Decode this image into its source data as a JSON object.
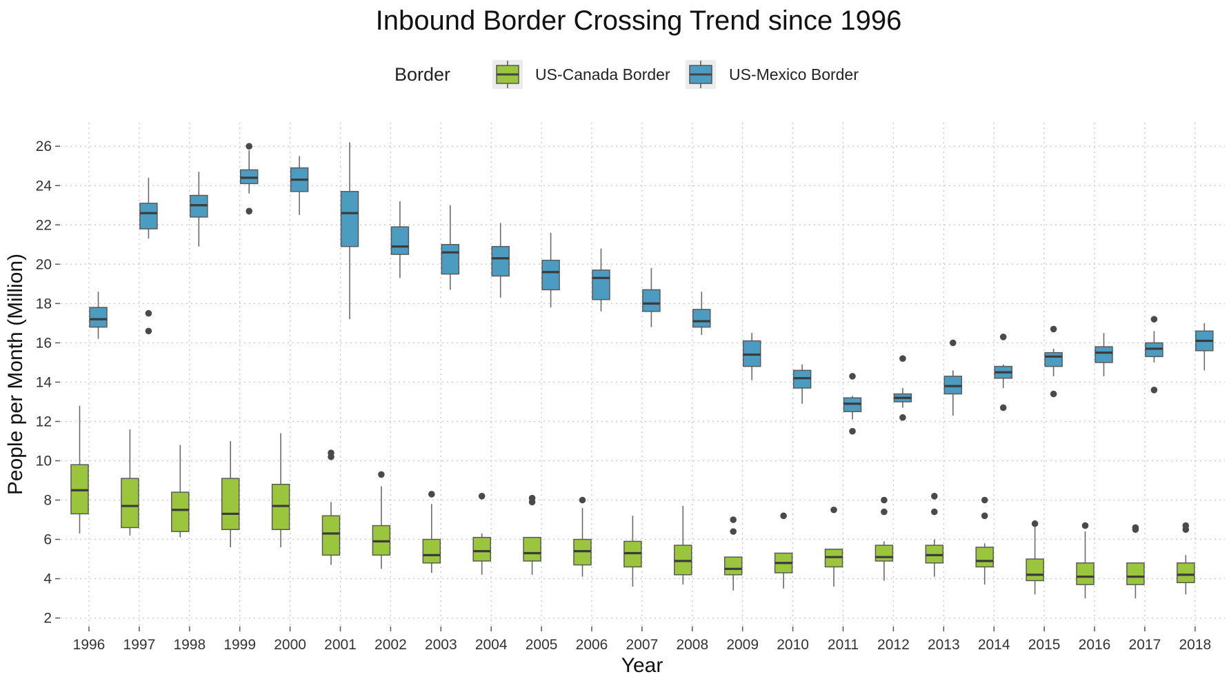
{
  "chart_data": {
    "type": "boxplot",
    "title": "Inbound Border Crossing Trend since 1996",
    "xlabel": "Year",
    "ylabel": "People per Month (Million)",
    "legend": {
      "title": "Border",
      "position": "top"
    },
    "ylim": [
      1.6,
      27.2
    ],
    "yticks": [
      2,
      4,
      6,
      8,
      10,
      12,
      14,
      16,
      18,
      20,
      22,
      24,
      26
    ],
    "categories": [
      "1996",
      "1997",
      "1998",
      "1999",
      "2000",
      "2001",
      "2002",
      "2003",
      "2004",
      "2005",
      "2006",
      "2007",
      "2008",
      "2009",
      "2010",
      "2011",
      "2012",
      "2013",
      "2014",
      "2015",
      "2016",
      "2017",
      "2018"
    ],
    "grid": true,
    "series": [
      {
        "name": "US-Canada Border",
        "color": "#9bc53d",
        "boxes": [
          {
            "whisker_low": 6.3,
            "q1": 7.3,
            "median": 8.5,
            "q3": 9.8,
            "whisker_high": 12.8,
            "outliers": []
          },
          {
            "whisker_low": 6.2,
            "q1": 6.6,
            "median": 7.7,
            "q3": 9.1,
            "whisker_high": 11.6,
            "outliers": []
          },
          {
            "whisker_low": 6.1,
            "q1": 6.4,
            "median": 7.5,
            "q3": 8.4,
            "whisker_high": 10.8,
            "outliers": []
          },
          {
            "whisker_low": 5.6,
            "q1": 6.5,
            "median": 7.3,
            "q3": 9.1,
            "whisker_high": 11.0,
            "outliers": []
          },
          {
            "whisker_low": 5.6,
            "q1": 6.5,
            "median": 7.7,
            "q3": 8.8,
            "whisker_high": 11.4,
            "outliers": []
          },
          {
            "whisker_low": 4.7,
            "q1": 5.2,
            "median": 6.3,
            "q3": 7.2,
            "whisker_high": 7.9,
            "outliers": [
              10.2,
              10.4
            ]
          },
          {
            "whisker_low": 4.5,
            "q1": 5.2,
            "median": 5.9,
            "q3": 6.7,
            "whisker_high": 8.7,
            "outliers": [
              9.3
            ]
          },
          {
            "whisker_low": 4.3,
            "q1": 4.8,
            "median": 5.2,
            "q3": 6.0,
            "whisker_high": 7.8,
            "outliers": [
              8.3
            ]
          },
          {
            "whisker_low": 4.2,
            "q1": 4.9,
            "median": 5.4,
            "q3": 6.1,
            "whisker_high": 6.3,
            "outliers": [
              8.2
            ]
          },
          {
            "whisker_low": 4.2,
            "q1": 4.9,
            "median": 5.3,
            "q3": 6.1,
            "whisker_high": 6.1,
            "outliers": [
              7.9,
              8.1
            ]
          },
          {
            "whisker_low": 4.1,
            "q1": 4.7,
            "median": 5.4,
            "q3": 6.0,
            "whisker_high": 7.6,
            "outliers": [
              8.0
            ]
          },
          {
            "whisker_low": 3.6,
            "q1": 4.6,
            "median": 5.3,
            "q3": 5.9,
            "whisker_high": 7.2,
            "outliers": []
          },
          {
            "whisker_low": 3.7,
            "q1": 4.2,
            "median": 4.9,
            "q3": 5.7,
            "whisker_high": 7.7,
            "outliers": []
          },
          {
            "whisker_low": 3.4,
            "q1": 4.2,
            "median": 4.5,
            "q3": 5.1,
            "whisker_high": 5.1,
            "outliers": [
              6.4,
              7.0
            ]
          },
          {
            "whisker_low": 3.5,
            "q1": 4.3,
            "median": 4.8,
            "q3": 5.3,
            "whisker_high": 5.3,
            "outliers": [
              7.2
            ]
          },
          {
            "whisker_low": 3.6,
            "q1": 4.6,
            "median": 5.1,
            "q3": 5.5,
            "whisker_high": 5.5,
            "outliers": [
              7.5
            ]
          },
          {
            "whisker_low": 3.9,
            "q1": 4.9,
            "median": 5.1,
            "q3": 5.7,
            "whisker_high": 5.9,
            "outliers": [
              7.4,
              8.0
            ]
          },
          {
            "whisker_low": 4.1,
            "q1": 4.8,
            "median": 5.2,
            "q3": 5.7,
            "whisker_high": 6.0,
            "outliers": [
              7.4,
              8.2
            ]
          },
          {
            "whisker_low": 3.7,
            "q1": 4.6,
            "median": 4.9,
            "q3": 5.6,
            "whisker_high": 5.8,
            "outliers": [
              7.2,
              8.0
            ]
          },
          {
            "whisker_low": 3.2,
            "q1": 3.9,
            "median": 4.2,
            "q3": 5.0,
            "whisker_high": 6.7,
            "outliers": [
              6.8
            ]
          },
          {
            "whisker_low": 3.0,
            "q1": 3.7,
            "median": 4.1,
            "q3": 4.8,
            "whisker_high": 6.4,
            "outliers": [
              6.7
            ]
          },
          {
            "whisker_low": 3.0,
            "q1": 3.7,
            "median": 4.1,
            "q3": 4.8,
            "whisker_high": 4.8,
            "outliers": [
              6.5,
              6.6
            ]
          },
          {
            "whisker_low": 3.2,
            "q1": 3.8,
            "median": 4.2,
            "q3": 4.8,
            "whisker_high": 5.2,
            "outliers": [
              6.5,
              6.7
            ]
          }
        ]
      },
      {
        "name": "US-Mexico Border",
        "color": "#4b9cc0",
        "boxes": [
          {
            "whisker_low": 16.2,
            "q1": 16.8,
            "median": 17.2,
            "q3": 17.8,
            "whisker_high": 18.6,
            "outliers": []
          },
          {
            "whisker_low": 21.3,
            "q1": 21.8,
            "median": 22.6,
            "q3": 23.1,
            "whisker_high": 24.4,
            "outliers": [
              16.6,
              17.5
            ]
          },
          {
            "whisker_low": 20.9,
            "q1": 22.4,
            "median": 23.0,
            "q3": 23.5,
            "whisker_high": 24.7,
            "outliers": []
          },
          {
            "whisker_low": 23.6,
            "q1": 24.1,
            "median": 24.4,
            "q3": 24.8,
            "whisker_high": 25.8,
            "outliers": [
              22.7,
              26.0
            ]
          },
          {
            "whisker_low": 22.5,
            "q1": 23.7,
            "median": 24.3,
            "q3": 24.9,
            "whisker_high": 25.5,
            "outliers": []
          },
          {
            "whisker_low": 17.2,
            "q1": 20.9,
            "median": 22.6,
            "q3": 23.7,
            "whisker_high": 26.2,
            "outliers": []
          },
          {
            "whisker_low": 19.3,
            "q1": 20.5,
            "median": 20.9,
            "q3": 21.9,
            "whisker_high": 23.2,
            "outliers": []
          },
          {
            "whisker_low": 18.7,
            "q1": 19.5,
            "median": 20.6,
            "q3": 21.0,
            "whisker_high": 23.0,
            "outliers": []
          },
          {
            "whisker_low": 18.3,
            "q1": 19.4,
            "median": 20.3,
            "q3": 20.9,
            "whisker_high": 22.1,
            "outliers": []
          },
          {
            "whisker_low": 17.8,
            "q1": 18.7,
            "median": 19.6,
            "q3": 20.2,
            "whisker_high": 21.6,
            "outliers": []
          },
          {
            "whisker_low": 17.6,
            "q1": 18.2,
            "median": 19.3,
            "q3": 19.7,
            "whisker_high": 20.8,
            "outliers": []
          },
          {
            "whisker_low": 16.8,
            "q1": 17.6,
            "median": 18.0,
            "q3": 18.7,
            "whisker_high": 19.8,
            "outliers": []
          },
          {
            "whisker_low": 16.4,
            "q1": 16.8,
            "median": 17.1,
            "q3": 17.7,
            "whisker_high": 18.6,
            "outliers": []
          },
          {
            "whisker_low": 14.1,
            "q1": 14.8,
            "median": 15.4,
            "q3": 16.1,
            "whisker_high": 16.5,
            "outliers": []
          },
          {
            "whisker_low": 12.9,
            "q1": 13.7,
            "median": 14.2,
            "q3": 14.6,
            "whisker_high": 14.9,
            "outliers": []
          },
          {
            "whisker_low": 12.1,
            "q1": 12.5,
            "median": 12.9,
            "q3": 13.2,
            "whisker_high": 13.3,
            "outliers": [
              11.5,
              14.3
            ]
          },
          {
            "whisker_low": 12.7,
            "q1": 13.0,
            "median": 13.2,
            "q3": 13.4,
            "whisker_high": 13.7,
            "outliers": [
              12.2,
              15.2
            ]
          },
          {
            "whisker_low": 12.3,
            "q1": 13.4,
            "median": 13.8,
            "q3": 14.3,
            "whisker_high": 14.6,
            "outliers": [
              16.0
            ]
          },
          {
            "whisker_low": 13.7,
            "q1": 14.2,
            "median": 14.5,
            "q3": 14.8,
            "whisker_high": 14.9,
            "outliers": [
              12.7,
              16.3
            ]
          },
          {
            "whisker_low": 14.3,
            "q1": 14.8,
            "median": 15.3,
            "q3": 15.5,
            "whisker_high": 15.7,
            "outliers": [
              13.4,
              16.7
            ]
          },
          {
            "whisker_low": 14.3,
            "q1": 15.0,
            "median": 15.5,
            "q3": 15.8,
            "whisker_high": 16.5,
            "outliers": []
          },
          {
            "whisker_low": 15.0,
            "q1": 15.3,
            "median": 15.7,
            "q3": 16.0,
            "whisker_high": 16.6,
            "outliers": [
              13.6,
              17.2
            ]
          },
          {
            "whisker_low": 14.6,
            "q1": 15.6,
            "median": 16.1,
            "q3": 16.6,
            "whisker_high": 17.0,
            "outliers": []
          }
        ]
      }
    ]
  }
}
